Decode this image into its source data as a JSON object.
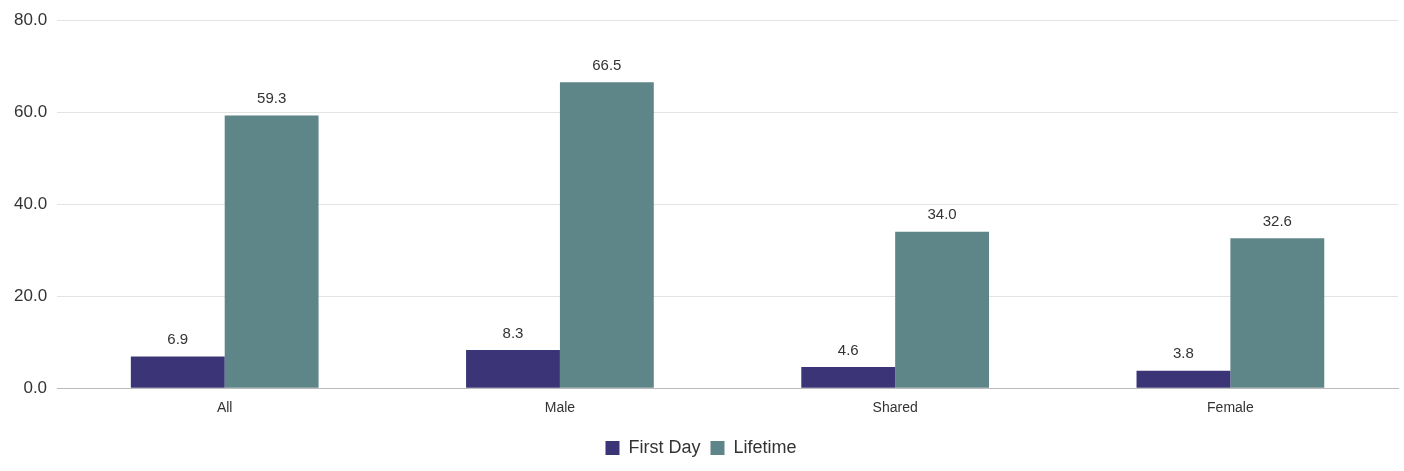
{
  "chart_data": {
    "type": "bar",
    "categories": [
      "All",
      "Male",
      "Shared",
      "Female"
    ],
    "series": [
      {
        "name": "First Day",
        "color": "#3b3577",
        "values": [
          6.9,
          8.3,
          4.6,
          3.8
        ],
        "value_labels": [
          "6.9",
          "8.3",
          "4.6",
          "3.8"
        ]
      },
      {
        "name": "Lifetime",
        "color": "#5e8689",
        "values": [
          59.3,
          66.5,
          34.0,
          32.6
        ],
        "value_labels": [
          "59.3",
          "66.5",
          "34.0",
          "32.6"
        ]
      }
    ],
    "ylim": [
      0,
      80
    ],
    "yticks": [
      {
        "value": 0,
        "label": "0.0"
      },
      {
        "value": 20,
        "label": "20.0"
      },
      {
        "value": 40,
        "label": "40.0"
      },
      {
        "value": 60,
        "label": "60.0"
      },
      {
        "value": 80,
        "label": "80.0"
      }
    ],
    "grid": "y",
    "legend": "bottom"
  }
}
